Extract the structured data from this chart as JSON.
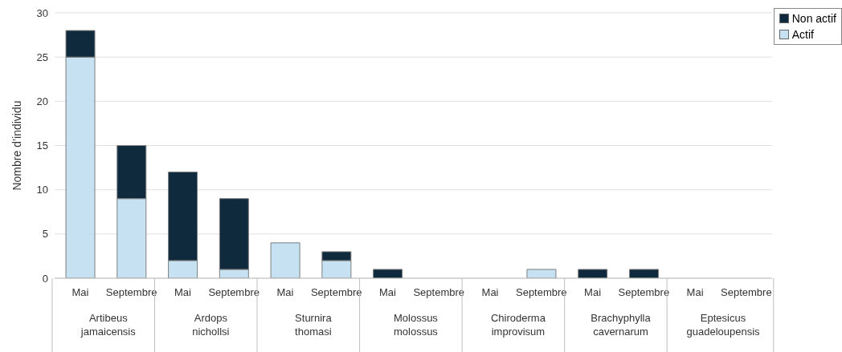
{
  "chart_data": {
    "type": "bar",
    "stacked": true,
    "ylabel": "Nombre d’individu",
    "categories": [
      "Mai",
      "Septembre",
      "Mai",
      "Septembre",
      "Mai",
      "Septembre",
      "Mai",
      "Septembre",
      "Mai",
      "Septembre",
      "Mai",
      "Septembre",
      "Mai",
      "Septembre"
    ],
    "annotations": [
      "Artibeus jamaicensis",
      "Ardops nichollsi",
      "Sturnira thomasi",
      "Molossus molossus",
      "Chiroderma improvisum",
      "Brachyphylla cavernarum",
      "Eptesicus guadeloupensis"
    ],
    "series": [
      {
        "name": "Actif",
        "color": "#c5e1f2",
        "values": [
          25,
          9,
          2,
          1,
          4,
          2,
          0,
          0,
          0,
          1,
          0,
          0,
          0,
          0
        ]
      },
      {
        "name": "Non actif",
        "color": "#0f2a3d",
        "values": [
          3,
          6,
          10,
          8,
          0,
          1,
          1,
          0,
          0,
          0,
          1,
          1,
          0,
          0
        ]
      }
    ],
    "ylim": [
      0,
      30
    ],
    "yticks": [
      0,
      5,
      10,
      15,
      20,
      25,
      30
    ],
    "grid": "y",
    "legend": "top right"
  }
}
